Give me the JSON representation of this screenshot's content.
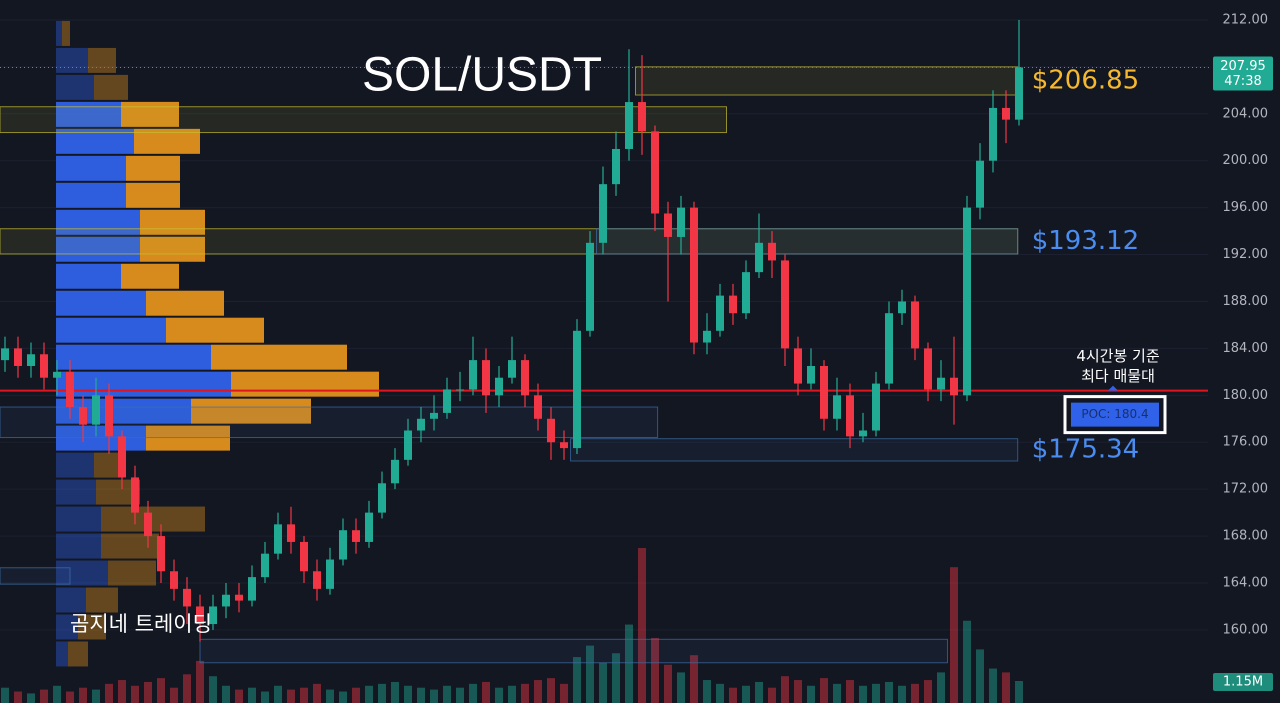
{
  "chart_data": {
    "type": "candlestick",
    "title": "SOL/USDT",
    "watermark": "곰지네 트레이딩",
    "up_color": "#22ab94",
    "down_color": "#f23645",
    "ylim": [
      153.77,
      213.7
    ],
    "yticks": [
      {
        "value": 160,
        "label": "160.00"
      },
      {
        "value": 164,
        "label": "164.00"
      },
      {
        "value": 168,
        "label": "168.00"
      },
      {
        "value": 172,
        "label": "172.00"
      },
      {
        "value": 176,
        "label": "176.00"
      },
      {
        "value": 180,
        "label": "180.00"
      },
      {
        "value": 184,
        "label": "184.00"
      },
      {
        "value": 188,
        "label": "188.00"
      },
      {
        "value": 192,
        "label": "192.00"
      },
      {
        "value": 196,
        "label": "196.00"
      },
      {
        "value": 200,
        "label": "200.00"
      },
      {
        "value": 204,
        "label": "204.00"
      },
      {
        "value": 208,
        "label": "208.00"
      },
      {
        "value": 212,
        "label": "212.00"
      }
    ],
    "grid": true,
    "open": [
      183,
      184,
      182.5,
      183.5,
      181.5,
      182,
      179,
      177.5,
      180,
      176.5,
      173,
      170,
      168,
      165,
      163.5,
      162,
      160.5,
      162,
      163,
      162.5,
      164.5,
      166.5,
      169,
      167.5,
      165,
      163.5,
      166,
      168.5,
      167.5,
      170,
      172.5,
      174.5,
      177,
      178,
      178.5,
      180.5,
      180.5,
      183,
      180,
      181.5,
      183,
      180,
      178,
      176,
      175.5,
      185.5,
      193,
      198,
      201,
      205,
      202.5,
      195.5,
      193.5,
      196,
      184.5,
      185.5,
      188.5,
      187,
      190.5,
      193,
      191.5,
      184,
      181,
      182.5,
      178,
      180,
      176.5,
      177,
      181,
      187,
      188,
      184,
      180.5,
      181.5,
      180,
      196,
      200,
      204.5,
      203.5
    ],
    "high": [
      185,
      185,
      184.5,
      184.5,
      183,
      183,
      180,
      181.5,
      181,
      177,
      174,
      171,
      169,
      166,
      164.5,
      163,
      163,
      164,
      164,
      165.5,
      167.5,
      170,
      170.5,
      168,
      166,
      167,
      169.5,
      169.5,
      171,
      173.5,
      175.5,
      178,
      179,
      180,
      181.5,
      182,
      185,
      184,
      182.5,
      185,
      183.5,
      181,
      179,
      177,
      186.5,
      194,
      199.5,
      202.5,
      209.5,
      209,
      203,
      196.5,
      197,
      196.5,
      187,
      189.5,
      189.5,
      191.5,
      195.5,
      194,
      192,
      185,
      184,
      183,
      181.5,
      181,
      178.5,
      182,
      188,
      189,
      188.5,
      184.5,
      183,
      185,
      197,
      201.5,
      206,
      206,
      212
    ],
    "low": [
      182,
      181.5,
      181.5,
      180.5,
      180,
      178,
      176,
      176.5,
      175,
      172,
      169,
      167,
      164,
      162.5,
      160.5,
      159,
      160,
      161,
      161.5,
      162,
      164,
      166,
      166.5,
      164,
      162.5,
      163,
      165.5,
      166.5,
      167,
      169.5,
      172,
      174,
      176,
      177,
      178,
      179.5,
      180,
      178.5,
      179,
      181,
      179,
      177,
      174.5,
      174.5,
      175,
      185,
      192,
      197,
      200,
      200.5,
      194,
      188,
      192,
      183.5,
      183.5,
      185,
      186,
      186.5,
      190,
      190,
      182.5,
      180,
      180.5,
      177,
      177,
      175.5,
      176,
      176.5,
      180.5,
      186,
      183,
      179.5,
      179.5,
      177.5,
      179.5,
      195,
      199,
      201.5,
      203
    ],
    "close": [
      184,
      182.5,
      183.5,
      181.5,
      182,
      179,
      177.5,
      180,
      176.5,
      173,
      170,
      168,
      165,
      163.5,
      162,
      160.5,
      162,
      163,
      162.5,
      164.5,
      166.5,
      169,
      167.5,
      165,
      163.5,
      166,
      168.5,
      167.5,
      170,
      172.5,
      174.5,
      177,
      178,
      178.5,
      180.5,
      180.5,
      183,
      180,
      181.5,
      183,
      180,
      178,
      176,
      175.5,
      185.5,
      193,
      198,
      201,
      205,
      202.5,
      195.5,
      193.5,
      196,
      184.5,
      185.5,
      188.5,
      187,
      190.5,
      193,
      191.5,
      184,
      181,
      182.5,
      178,
      180,
      176.5,
      177,
      181,
      187,
      188,
      184,
      180.5,
      181.5,
      180,
      196,
      200,
      204.5,
      203.5,
      207.95
    ],
    "volume": {
      "values": [
        0.8,
        0.6,
        0.5,
        0.7,
        0.9,
        0.6,
        0.8,
        0.7,
        1.0,
        1.2,
        0.9,
        1.1,
        1.3,
        0.8,
        1.5,
        2.2,
        1.4,
        0.9,
        0.7,
        0.8,
        0.6,
        0.9,
        0.7,
        0.8,
        1.0,
        0.7,
        0.6,
        0.8,
        0.9,
        1.0,
        1.1,
        0.9,
        0.8,
        0.7,
        0.9,
        0.8,
        1.0,
        1.1,
        0.8,
        0.9,
        1.0,
        1.2,
        1.3,
        1.0,
        2.4,
        3.0,
        2.1,
        2.6,
        4.1,
        8.1,
        3.4,
        2.0,
        1.6,
        2.5,
        1.2,
        1.0,
        0.8,
        0.9,
        1.1,
        0.8,
        1.4,
        1.2,
        0.9,
        1.3,
        1.0,
        1.2,
        0.9,
        1.0,
        1.1,
        0.9,
        1.0,
        1.2,
        1.6,
        7.1,
        4.3,
        2.8,
        1.8,
        1.6,
        1.15
      ],
      "last_label": "1.15M"
    },
    "last_price": 207.95,
    "countdown": "47:38",
    "volume_profile": {
      "bins": [
        156.8,
        159.1,
        161.4,
        163.7,
        166.0,
        168.3,
        170.6,
        172.9,
        175.2,
        177.5,
        179.8,
        182.1,
        184.4,
        186.7,
        189.0,
        191.3,
        193.6,
        195.9,
        198.2,
        200.5,
        202.8,
        205.1,
        207.4,
        209.7,
        212.0
      ],
      "buy": [
        12,
        22,
        30,
        52,
        45,
        45,
        40,
        38,
        90,
        135,
        175,
        155,
        110,
        90,
        65,
        84,
        84,
        70,
        70,
        78,
        65,
        38,
        32,
        6
      ],
      "sell": [
        20,
        28,
        32,
        48,
        58,
        104,
        44,
        30,
        84,
        120,
        148,
        136,
        98,
        78,
        58,
        65,
        65,
        54,
        54,
        66,
        58,
        34,
        28,
        8
      ],
      "value_area": [
        175.2,
        205.1
      ],
      "buy_color": "#2f62e8",
      "sell_color": "#e0911c"
    },
    "poc": {
      "value": 180.4,
      "label": "POC: 180.4",
      "note": [
        "4시간봉 기준",
        "최다 매물대"
      ],
      "color": "#e0151f"
    },
    "zones": [
      {
        "low": 202.4,
        "high": 204.6,
        "from": -0.4,
        "to": 55.5,
        "color": "#c8c030"
      },
      {
        "low": 192.05,
        "high": 194.2,
        "from": -0.4,
        "to": 77.9,
        "color": "#c8c030"
      },
      {
        "low": 192.05,
        "high": 194.2,
        "from": 45.5,
        "to": 77.9,
        "color": "#3d6ea8",
        "label": "$193.12",
        "label_color": "#4a8cf0"
      },
      {
        "low": 205.6,
        "high": 208.0,
        "from": 48.5,
        "to": 77.9,
        "color": "#c8c030",
        "label": "$206.85",
        "label_color": "#f5b82e"
      },
      {
        "low": 176.4,
        "high": 179.0,
        "from": -0.4,
        "to": 50.2,
        "color": "#3d6ea8"
      },
      {
        "low": 174.4,
        "high": 176.3,
        "from": 43.5,
        "to": 77.9,
        "color": "#3d6ea8",
        "label": "$175.34",
        "label_color": "#4a8cf0"
      },
      {
        "low": 163.9,
        "high": 165.3,
        "from": -0.4,
        "to": 5,
        "color": "#3d6ea8"
      },
      {
        "low": 157.2,
        "high": 159.2,
        "from": 15,
        "to": 72.5,
        "color": "#3d6ea8"
      }
    ]
  }
}
